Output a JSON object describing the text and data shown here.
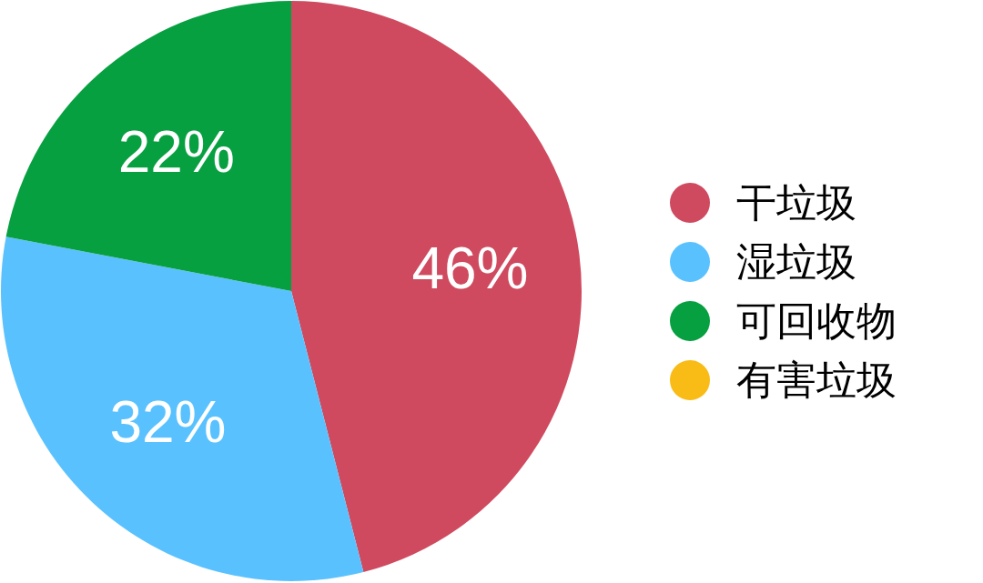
{
  "chart_data": {
    "type": "pie",
    "categories": [
      "干垃圾",
      "湿垃圾",
      "可回收物",
      "有害垃圾"
    ],
    "values": [
      46,
      32,
      22,
      0
    ],
    "colors": [
      "#cf4a5f",
      "#59c2fe",
      "#07a041",
      "#f9bb16"
    ],
    "value_labels": [
      "46%",
      "32%",
      "22%",
      null
    ],
    "legend": "right"
  }
}
